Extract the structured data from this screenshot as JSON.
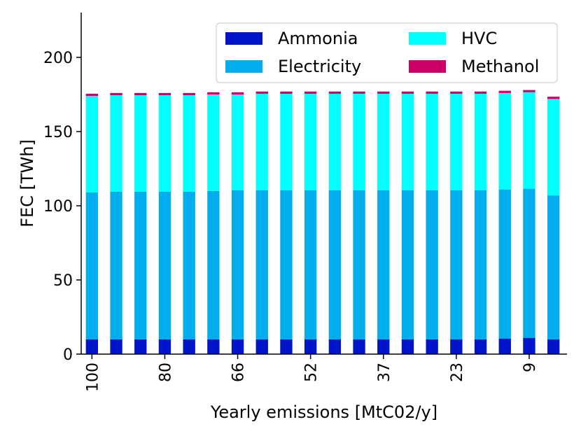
{
  "chart_data": {
    "type": "bar",
    "stacked": true,
    "title": "",
    "xlabel": "Yearly emissions [MtC02/y]",
    "ylabel": "FEC [TWh]",
    "ylim": [
      0,
      230
    ],
    "yticks": [
      0,
      50,
      100,
      150,
      200
    ],
    "categories": [
      "100",
      "",
      "",
      "80",
      "",
      "",
      "66",
      "",
      "",
      "52",
      "",
      "",
      "37",
      "",
      "",
      "23",
      "",
      "",
      "9",
      ""
    ],
    "xtick_labels": [
      "100",
      "80",
      "66",
      "52",
      "37",
      "23",
      "9"
    ],
    "series": [
      {
        "name": "Ammonia",
        "color": "#0015c9",
        "values": [
          10,
          10,
          10,
          10,
          10,
          10,
          10,
          10,
          10,
          10,
          10,
          10,
          10,
          10,
          10,
          10,
          10,
          10.5,
          11,
          10
        ]
      },
      {
        "name": "Electricity",
        "color": "#00aeee",
        "values": [
          99,
          99.5,
          99.5,
          99.5,
          99.5,
          100,
          100.5,
          100.5,
          100.5,
          100.5,
          100.5,
          100.5,
          100.5,
          100.5,
          100.5,
          100.5,
          100.5,
          100.5,
          100.5,
          97
        ]
      },
      {
        "name": "HVC",
        "color": "#00ffff",
        "values": [
          65,
          65,
          65,
          65,
          65,
          65,
          64.5,
          65,
          65,
          65,
          65,
          65,
          65,
          65,
          65,
          65,
          65,
          65,
          65,
          65
        ]
      },
      {
        "name": "Methanol",
        "color": "#cc0066",
        "values": [
          1.5,
          1.5,
          1.5,
          1.5,
          1.5,
          1.5,
          1.5,
          1.5,
          1.5,
          1.5,
          1.5,
          1.5,
          1.5,
          1.5,
          1.5,
          1.5,
          1.5,
          1.5,
          1.5,
          1.5
        ]
      }
    ],
    "legend_position": "top-right",
    "legend_columns": 2,
    "grid": false
  }
}
